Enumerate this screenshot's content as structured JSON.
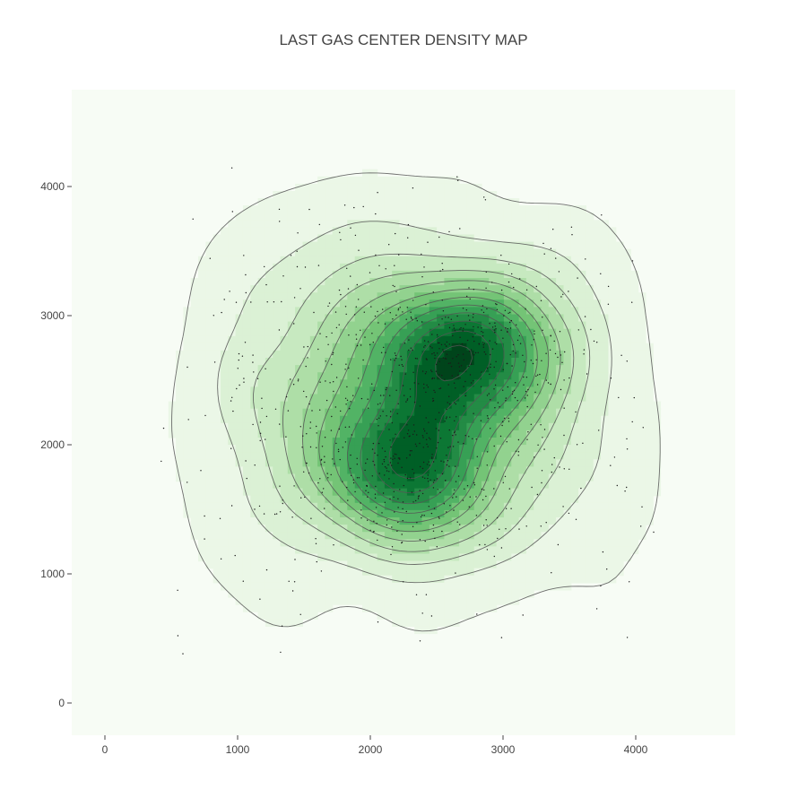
{
  "chart_data": {
    "type": "density_contour",
    "title": "LAST GAS CENTER DENSITY MAP",
    "xlabel": "",
    "ylabel": "",
    "xlim": [
      -250,
      4750
    ],
    "ylim": [
      -250,
      4750
    ],
    "x_ticks": [
      0,
      1000,
      2000,
      3000,
      4000
    ],
    "y_ticks": [
      0,
      1000,
      2000,
      3000,
      4000
    ],
    "x_tick_labels": [
      "0",
      "1000",
      "2000",
      "3000",
      "4000"
    ],
    "y_tick_labels": [
      "0",
      "1000",
      "2000",
      "3000",
      "4000"
    ],
    "grid": false,
    "legend": "none",
    "colorscale": "Greens",
    "colors": {
      "plot_background": "#f7fcf5",
      "contour_line": "#555555",
      "point": "#1a1a1a",
      "axis_text": "#444444"
    },
    "contour_levels": 12,
    "density_peaks": [
      {
        "x": 2750,
        "y": 2720,
        "level": "highest"
      },
      {
        "x": 2270,
        "y": 1760,
        "level": "high"
      },
      {
        "x": 2300,
        "y": 2300,
        "level": "moderate"
      }
    ],
    "points_approx_count": 1000,
    "x_range_of_points": [
      400,
      4150
    ],
    "y_range_of_points": [
      380,
      4150
    ]
  }
}
